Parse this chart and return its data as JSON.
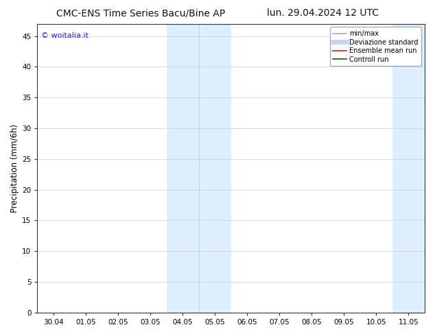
{
  "title_left": "CMC-ENS Time Series Bacu/Bine AP",
  "title_right": "lun. 29.04.2024 12 UTC",
  "ylabel": "Precipitation (mm/6h)",
  "watermark": "© woitalia.it",
  "watermark_color": "#1a1aff",
  "ylim": [
    0,
    47
  ],
  "yticks": [
    0,
    5,
    10,
    15,
    20,
    25,
    30,
    35,
    40,
    45
  ],
  "xtick_labels": [
    "30.04",
    "01.05",
    "02.05",
    "03.05",
    "04.05",
    "05.05",
    "06.05",
    "07.05",
    "08.05",
    "09.05",
    "10.05",
    "11.05"
  ],
  "xtick_positions": [
    0,
    1,
    2,
    3,
    4,
    5,
    6,
    7,
    8,
    9,
    10,
    11
  ],
  "xlim": [
    -0.5,
    11.5
  ],
  "shaded_regions": [
    {
      "x_start": 3.5,
      "x_end": 5.5,
      "color": "#ddeeff"
    },
    {
      "x_start": 10.5,
      "x_end": 11.5,
      "color": "#ddeeff"
    }
  ],
  "shade_dividers": [
    4.5
  ],
  "legend_entries": [
    {
      "label": "min/max",
      "color": "#aaaaaa",
      "lw": 1.2,
      "style": "-"
    },
    {
      "label": "Deviazione standard",
      "color": "#c5d8ea",
      "lw": 5,
      "style": "-"
    },
    {
      "label": "Ensemble mean run",
      "color": "#cc2200",
      "lw": 1.2,
      "style": "-"
    },
    {
      "label": "Controll run",
      "color": "#006600",
      "lw": 1.2,
      "style": "-"
    }
  ],
  "background_color": "#ffffff",
  "grid_color": "#cccccc",
  "title_fontsize": 10,
  "tick_fontsize": 7.5,
  "ylabel_fontsize": 8.5,
  "watermark_fontsize": 8,
  "legend_fontsize": 7
}
